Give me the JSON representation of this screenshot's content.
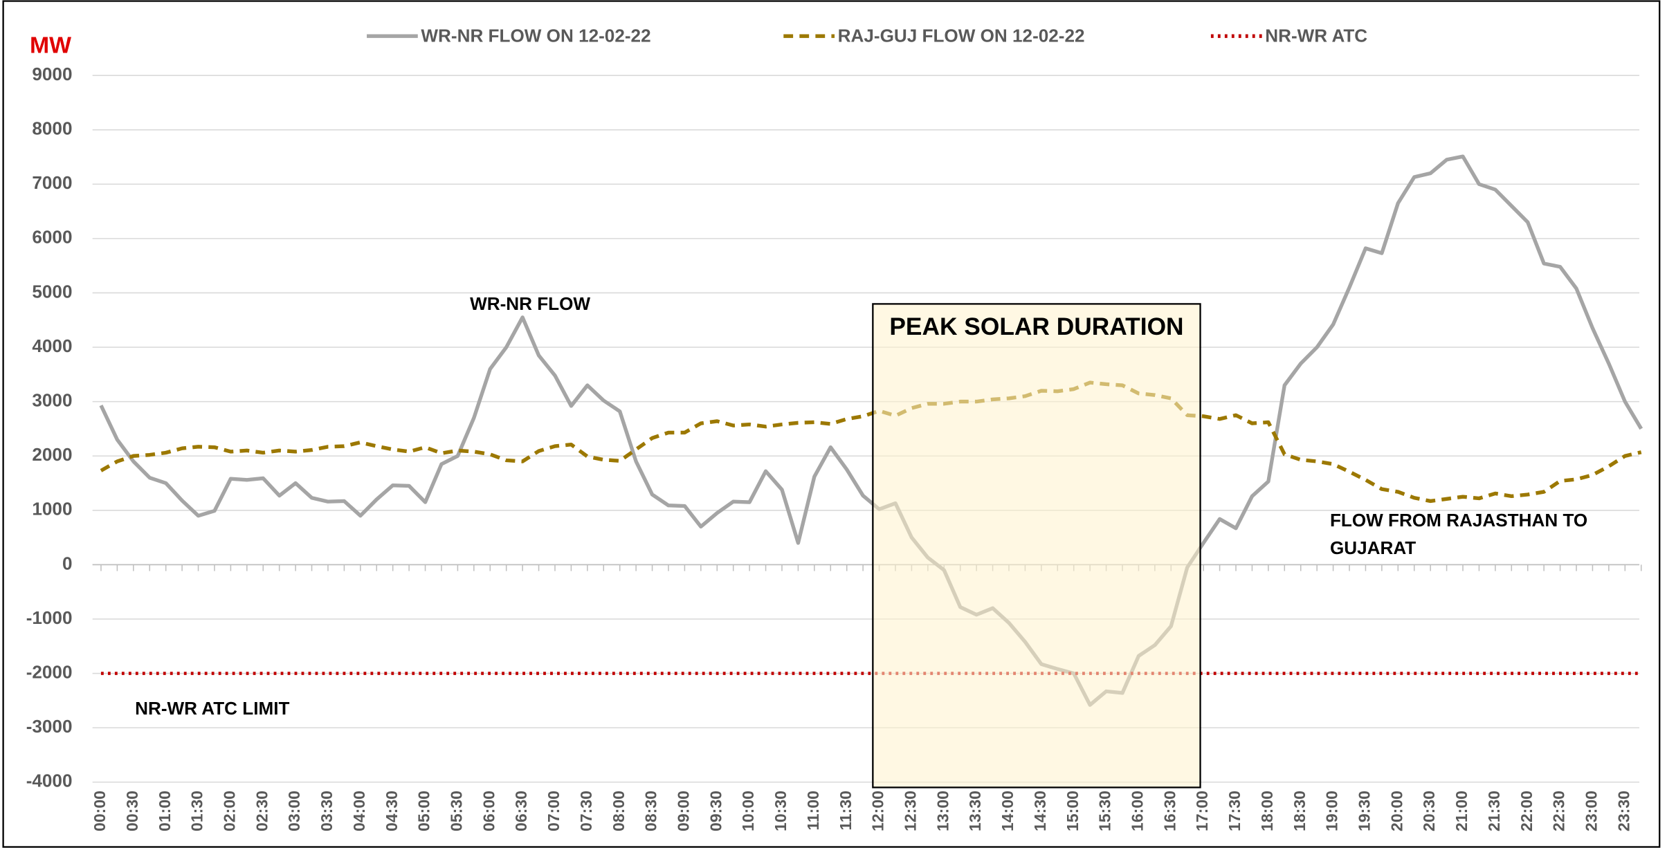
{
  "chart_data": {
    "type": "line",
    "y_unit": "MW",
    "categories": [
      "00:00",
      null,
      "00:30",
      null,
      "01:00",
      null,
      "01:30",
      null,
      "02:00",
      null,
      "02:30",
      null,
      "03:00",
      null,
      "03:30",
      null,
      "04:00",
      null,
      "04:30",
      null,
      "05:00",
      null,
      "05:30",
      null,
      "06:00",
      null,
      "06:30",
      null,
      "07:00",
      null,
      "07:30",
      null,
      "08:00",
      null,
      "08:30",
      null,
      "09:00",
      null,
      "09:30",
      null,
      "10:00",
      null,
      "10:30",
      null,
      "11:00",
      null,
      "11:30",
      null,
      "12:00",
      null,
      "12:30",
      null,
      "13:00",
      null,
      "13:30",
      null,
      "14:00",
      null,
      "14:30",
      null,
      "15:00",
      null,
      "15:30",
      null,
      "16:00",
      null,
      "16:30",
      null,
      "17:00",
      null,
      "17:30",
      null,
      "18:00",
      null,
      "18:30",
      null,
      "19:00",
      null,
      "19:30",
      null,
      "20:00",
      null,
      "20:30",
      null,
      "21:00",
      null,
      "21:30",
      null,
      "22:00",
      null,
      "22:30",
      null,
      "23:00",
      null,
      "23:30",
      null
    ],
    "series": [
      {
        "name": "WR-NR FLOW ON 12-02-22",
        "color": "#a5a5a5",
        "style": "solid",
        "values": [
          2930,
          2300,
          1900,
          1600,
          1500,
          1180,
          900,
          990,
          1580,
          1560,
          1590,
          1270,
          1500,
          1230,
          1160,
          1170,
          900,
          1200,
          1460,
          1450,
          1150,
          1850,
          2000,
          2700,
          3600,
          4000,
          4550,
          3850,
          3480,
          2920,
          3300,
          3020,
          2820,
          1900,
          1290,
          1090,
          1080,
          700,
          950,
          1160,
          1150,
          1720,
          1380,
          400,
          1620,
          2160,
          1750,
          1270,
          1020,
          1130,
          500,
          130,
          -100,
          -780,
          -920,
          -800,
          -1070,
          -1420,
          -1830,
          -1920,
          -2000,
          -2580,
          -2330,
          -2360,
          -1680,
          -1480,
          -1130,
          -50,
          400,
          840,
          670,
          1260,
          1530,
          3300,
          3700,
          4000,
          4420,
          5100,
          5820,
          5730,
          6650,
          7130,
          7200,
          7450,
          7510,
          7000,
          6900,
          6600,
          6300,
          5540,
          5480,
          5080,
          4350,
          3700,
          3000,
          2500
        ]
      },
      {
        "name": "RAJ-GUJ FLOW ON 12-02-22",
        "color": "#9c7800",
        "style": "dashed",
        "values": [
          1730,
          1900,
          2000,
          2020,
          2060,
          2140,
          2170,
          2160,
          2080,
          2100,
          2060,
          2100,
          2080,
          2110,
          2170,
          2180,
          2250,
          2180,
          2120,
          2080,
          2160,
          2050,
          2100,
          2080,
          2030,
          1920,
          1900,
          2090,
          2180,
          2210,
          1990,
          1930,
          1910,
          2120,
          2330,
          2430,
          2430,
          2600,
          2640,
          2560,
          2580,
          2540,
          2580,
          2610,
          2620,
          2590,
          2680,
          2730,
          2830,
          2740,
          2880,
          2960,
          2960,
          3000,
          3000,
          3040,
          3060,
          3100,
          3200,
          3190,
          3230,
          3350,
          3320,
          3300,
          3150,
          3120,
          3060,
          2750,
          2730,
          2680,
          2750,
          2600,
          2620,
          2030,
          1930,
          1900,
          1850,
          1710,
          1560,
          1390,
          1340,
          1230,
          1170,
          1210,
          1250,
          1220,
          1310,
          1260,
          1290,
          1340,
          1540,
          1570,
          1650,
          1810,
          2000,
          2070
        ]
      },
      {
        "name": "NR-WR ATC",
        "color": "#c00000",
        "style": "dotted",
        "values": [
          -2000,
          -2000,
          -2000,
          -2000,
          -2000,
          -2000,
          -2000,
          -2000,
          -2000,
          -2000,
          -2000,
          -2000,
          -2000,
          -2000,
          -2000,
          -2000,
          -2000,
          -2000,
          -2000,
          -2000,
          -2000,
          -2000,
          -2000,
          -2000,
          -2000,
          -2000,
          -2000,
          -2000,
          -2000,
          -2000,
          -2000,
          -2000,
          -2000,
          -2000,
          -2000,
          -2000,
          -2000,
          -2000,
          -2000,
          -2000,
          -2000,
          -2000,
          -2000,
          -2000,
          -2000,
          -2000,
          -2000,
          -2000,
          -2000,
          -2000,
          -2000,
          -2000,
          -2000,
          -2000,
          -2000,
          -2000,
          -2000,
          -2000,
          -2000,
          -2000,
          -2000,
          -2000,
          -2000,
          -2000,
          -2000,
          -2000,
          -2000,
          -2000,
          -2000,
          -2000,
          -2000,
          -2000,
          -2000,
          -2000,
          -2000,
          -2000,
          -2000,
          -2000,
          -2000,
          -2000,
          -2000,
          -2000,
          -2000,
          -2000,
          -2000,
          -2000,
          -2000,
          -2000,
          -2000,
          -2000,
          -2000,
          -2000,
          -2000,
          -2000,
          -2000,
          -2000
        ]
      }
    ],
    "ylim": [
      -4000,
      9000
    ],
    "yticks": [
      -4000,
      -3000,
      -2000,
      -1000,
      0,
      1000,
      2000,
      3000,
      4000,
      5000,
      6000,
      7000,
      8000,
      9000
    ],
    "grid": true,
    "legend": "top",
    "annotations": {
      "wr_nr": "WR-NR FLOW",
      "peak": "PEAK SOLAR DURATION",
      "raj_guj_1": "FLOW FROM RAJASTHAN TO",
      "raj_guj_2": "GUJARAT",
      "atc": "NR-WR ATC LIMIT"
    }
  }
}
